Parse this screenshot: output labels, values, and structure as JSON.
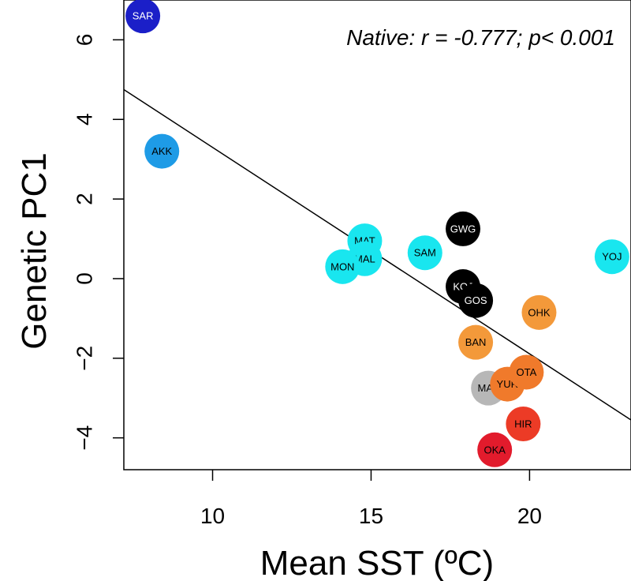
{
  "chart_data": {
    "type": "scatter",
    "xlabel": "Mean SST (ºC)",
    "ylabel": "Genetic PC1",
    "annotation": "Native: r = -0.777; p< 0.001",
    "xlim": [
      7.2,
      23.2
    ],
    "ylim": [
      -4.8,
      7.0
    ],
    "xticks": [
      10,
      15,
      20
    ],
    "yticks": [
      -4,
      -2,
      0,
      2,
      4,
      6
    ],
    "xtick_labels": [
      "10",
      "15",
      "20"
    ],
    "ytick_labels": [
      "−4",
      "−2",
      "0",
      "2",
      "4",
      "6"
    ],
    "grid": false,
    "regression_line": {
      "x": [
        7.2,
        23.2
      ],
      "y": [
        4.75,
        -3.55
      ]
    },
    "points": [
      {
        "label": "SAR",
        "x": 7.8,
        "y": 6.6,
        "color": "#1b1fc8",
        "text_color": "#ffffff"
      },
      {
        "label": "AKK",
        "x": 8.4,
        "y": 3.2,
        "color": "#1e9be6",
        "text_color": "#000000"
      },
      {
        "label": "MAT",
        "x": 14.8,
        "y": 0.95,
        "color": "#19e6ef",
        "text_color": "#000000"
      },
      {
        "label": "MAL",
        "x": 14.8,
        "y": 0.5,
        "color": "#19e6ef",
        "text_color": "#000000"
      },
      {
        "label": "MON",
        "x": 14.1,
        "y": 0.3,
        "color": "#19e6ef",
        "text_color": "#000000"
      },
      {
        "label": "SAM",
        "x": 16.7,
        "y": 0.65,
        "color": "#19e6ef",
        "text_color": "#000000"
      },
      {
        "label": "YOJ",
        "x": 22.6,
        "y": 0.55,
        "color": "#19e6ef",
        "text_color": "#000000"
      },
      {
        "label": "GWG",
        "x": 17.9,
        "y": 1.25,
        "color": "#000000",
        "text_color": "#ffffff"
      },
      {
        "label": "KOJ",
        "x": 17.9,
        "y": -0.2,
        "color": "#000000",
        "text_color": "#ffffff"
      },
      {
        "label": "GOS",
        "x": 18.3,
        "y": -0.55,
        "color": "#000000",
        "text_color": "#ffffff"
      },
      {
        "label": "OHK",
        "x": 20.3,
        "y": -0.85,
        "color": "#f3993a",
        "text_color": "#000000"
      },
      {
        "label": "BAN",
        "x": 18.3,
        "y": -1.6,
        "color": "#f3993a",
        "text_color": "#000000"
      },
      {
        "label": "MAY",
        "x": 18.7,
        "y": -2.75,
        "color": "#b7b7b7",
        "text_color": "#000000"
      },
      {
        "label": "YUR",
        "x": 19.3,
        "y": -2.65,
        "color": "#f07a2b",
        "text_color": "#000000"
      },
      {
        "label": "OTA",
        "x": 19.9,
        "y": -2.35,
        "color": "#f07a2b",
        "text_color": "#000000"
      },
      {
        "label": "HIR",
        "x": 19.8,
        "y": -3.65,
        "color": "#ec3b26",
        "text_color": "#000000"
      },
      {
        "label": "OKA",
        "x": 18.9,
        "y": -4.3,
        "color": "#e21b2c",
        "text_color": "#000000"
      }
    ]
  }
}
